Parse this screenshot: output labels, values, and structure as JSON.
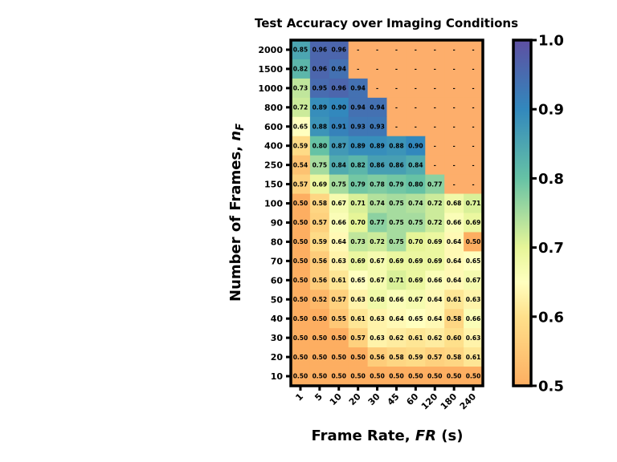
{
  "chart_data": {
    "type": "heatmap",
    "title": "Test Accuracy over Imaging Conditions",
    "xlabel_main": "Frame Rate, ",
    "xlabel_italic": "FR",
    "xlabel_unit": " (s)",
    "ylabel_main": "Number of Frames, ",
    "ylabel_italic": "n",
    "ylabel_sub": "F",
    "x_ticks": [
      "1",
      "5",
      "10",
      "20",
      "30",
      "45",
      "60",
      "120",
      "180",
      "240"
    ],
    "y_ticks": [
      "2000",
      "1500",
      "1000",
      "800",
      "600",
      "400",
      "250",
      "150",
      "100",
      "90",
      "80",
      "70",
      "60",
      "50",
      "40",
      "30",
      "20",
      "10"
    ],
    "missing_label": "-",
    "values": [
      [
        0.85,
        0.96,
        0.96,
        null,
        null,
        null,
        null,
        null,
        null,
        null
      ],
      [
        0.82,
        0.96,
        0.94,
        null,
        null,
        null,
        null,
        null,
        null,
        null
      ],
      [
        0.73,
        0.95,
        0.96,
        0.94,
        null,
        null,
        null,
        null,
        null,
        null
      ],
      [
        0.72,
        0.89,
        0.9,
        0.94,
        0.94,
        null,
        null,
        null,
        null,
        null
      ],
      [
        0.65,
        0.88,
        0.91,
        0.93,
        0.93,
        null,
        null,
        null,
        null,
        null
      ],
      [
        0.59,
        0.8,
        0.87,
        0.89,
        0.89,
        0.88,
        0.9,
        null,
        null,
        null
      ],
      [
        0.54,
        0.75,
        0.84,
        0.82,
        0.86,
        0.86,
        0.84,
        null,
        null,
        null
      ],
      [
        0.57,
        0.69,
        0.75,
        0.79,
        0.78,
        0.79,
        0.8,
        0.77,
        null,
        null
      ],
      [
        0.5,
        0.58,
        0.67,
        0.71,
        0.74,
        0.75,
        0.74,
        0.72,
        0.68,
        0.71
      ],
      [
        0.5,
        0.57,
        0.66,
        0.7,
        0.77,
        0.75,
        0.75,
        0.72,
        0.66,
        0.69
      ],
      [
        0.5,
        0.59,
        0.64,
        0.73,
        0.72,
        0.75,
        0.7,
        0.69,
        0.64,
        0.5
      ],
      [
        0.5,
        0.56,
        0.63,
        0.69,
        0.67,
        0.69,
        0.69,
        0.69,
        0.64,
        0.65
      ],
      [
        0.5,
        0.56,
        0.61,
        0.65,
        0.67,
        0.71,
        0.69,
        0.66,
        0.64,
        0.67
      ],
      [
        0.5,
        0.52,
        0.57,
        0.63,
        0.68,
        0.66,
        0.67,
        0.64,
        0.61,
        0.63
      ],
      [
        0.5,
        0.5,
        0.55,
        0.61,
        0.63,
        0.64,
        0.65,
        0.64,
        0.58,
        0.66
      ],
      [
        0.5,
        0.5,
        0.5,
        0.57,
        0.63,
        0.62,
        0.61,
        0.62,
        0.6,
        0.63
      ],
      [
        0.5,
        0.5,
        0.5,
        0.5,
        0.56,
        0.58,
        0.59,
        0.57,
        0.58,
        0.61
      ],
      [
        0.5,
        0.5,
        0.5,
        0.5,
        0.5,
        0.5,
        0.5,
        0.5,
        0.5,
        0.5
      ]
    ],
    "missing_color": "#fdae6b",
    "colorbar": {
      "range": [
        0.5,
        1.0
      ],
      "ticks": [
        "0.5",
        "0.6",
        "0.7",
        "0.8",
        "0.9",
        "1.0"
      ],
      "colormap": "Spectral",
      "stops": [
        {
          "v": 0.5,
          "color": "#fdae61"
        },
        {
          "v": 0.6,
          "color": "#fee08b"
        },
        {
          "v": 0.65,
          "color": "#ffffbf"
        },
        {
          "v": 0.7,
          "color": "#e6f598"
        },
        {
          "v": 0.8,
          "color": "#66c2a5"
        },
        {
          "v": 0.9,
          "color": "#3288bd"
        },
        {
          "v": 1.0,
          "color": "#5e4fa2"
        }
      ]
    }
  }
}
